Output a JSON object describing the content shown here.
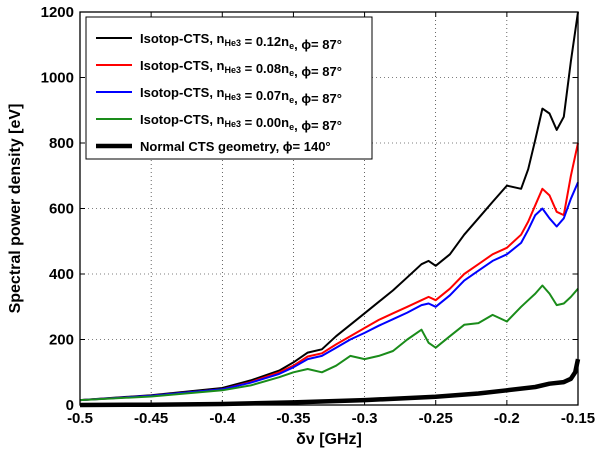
{
  "chart_data": {
    "type": "line",
    "xlabel": "δν [GHz]",
    "ylabel": "Spectral power density [eV]",
    "xlim": [
      -0.5,
      -0.15
    ],
    "ylim": [
      0,
      1200
    ],
    "xticks": [
      "-0.5",
      "-0.45",
      "-0.4",
      "-0.35",
      "-0.3",
      "-0.25",
      "-0.2",
      "-0.15"
    ],
    "xtick_values": [
      -0.5,
      -0.45,
      -0.4,
      -0.35,
      -0.3,
      -0.25,
      -0.2,
      -0.15
    ],
    "yticks": [
      "0",
      "200",
      "400",
      "600",
      "800",
      "1000",
      "1200"
    ],
    "ytick_values": [
      0,
      200,
      400,
      600,
      800,
      1000,
      1200
    ],
    "grid": true,
    "legend_position": "top-left",
    "legend": [
      {
        "prefix": "Isotop-CTS, n",
        "sub1": "He3",
        "mid": " = 0.12n",
        "sub2": "e",
        "suffix": ", ϕ= 87°"
      },
      {
        "prefix": "Isotop-CTS, n",
        "sub1": "He3",
        "mid": " = 0.08n",
        "sub2": "e",
        "suffix": ", ϕ= 87°"
      },
      {
        "prefix": "Isotop-CTS, n",
        "sub1": "He3",
        "mid": " = 0.07n",
        "sub2": "e",
        "suffix": ", ϕ= 87°"
      },
      {
        "prefix": "Isotop-CTS, n",
        "sub1": "He3",
        "mid": " = 0.00n",
        "sub2": "e",
        "suffix": ", ϕ= 87°"
      },
      {
        "prefix": "Normal CTS geometry,",
        "sub1": "",
        "mid": "      ϕ= 140°",
        "sub2": "",
        "suffix": ""
      }
    ],
    "series": [
      {
        "color": "#000000",
        "width": 2,
        "x": [
          -0.5,
          -0.45,
          -0.4,
          -0.38,
          -0.36,
          -0.35,
          -0.34,
          -0.33,
          -0.32,
          -0.31,
          -0.3,
          -0.29,
          -0.28,
          -0.27,
          -0.26,
          -0.255,
          -0.25,
          -0.24,
          -0.23,
          -0.22,
          -0.21,
          -0.2,
          -0.19,
          -0.185,
          -0.18,
          -0.175,
          -0.17,
          -0.165,
          -0.16,
          -0.155,
          -0.15
        ],
        "y": [
          15,
          30,
          52,
          75,
          105,
          130,
          160,
          170,
          210,
          245,
          280,
          315,
          350,
          390,
          430,
          440,
          425,
          460,
          520,
          570,
          620,
          670,
          660,
          720,
          810,
          905,
          890,
          840,
          880,
          1050,
          1200
        ]
      },
      {
        "color": "#ff0000",
        "width": 2,
        "x": [
          -0.5,
          -0.45,
          -0.4,
          -0.38,
          -0.36,
          -0.35,
          -0.34,
          -0.33,
          -0.32,
          -0.31,
          -0.3,
          -0.29,
          -0.28,
          -0.27,
          -0.26,
          -0.255,
          -0.25,
          -0.24,
          -0.23,
          -0.22,
          -0.21,
          -0.2,
          -0.19,
          -0.185,
          -0.18,
          -0.175,
          -0.17,
          -0.165,
          -0.16,
          -0.155,
          -0.15
        ],
        "y": [
          15,
          28,
          48,
          70,
          100,
          120,
          148,
          158,
          185,
          210,
          235,
          260,
          280,
          300,
          320,
          330,
          320,
          355,
          400,
          430,
          460,
          480,
          520,
          560,
          610,
          660,
          640,
          590,
          580,
          700,
          800
        ]
      },
      {
        "color": "#0000ff",
        "width": 2,
        "x": [
          -0.5,
          -0.45,
          -0.4,
          -0.38,
          -0.36,
          -0.35,
          -0.34,
          -0.33,
          -0.32,
          -0.31,
          -0.3,
          -0.29,
          -0.28,
          -0.27,
          -0.26,
          -0.255,
          -0.25,
          -0.24,
          -0.23,
          -0.22,
          -0.21,
          -0.2,
          -0.19,
          -0.185,
          -0.18,
          -0.175,
          -0.17,
          -0.165,
          -0.16,
          -0.155,
          -0.15
        ],
        "y": [
          15,
          28,
          48,
          68,
          95,
          115,
          140,
          150,
          175,
          200,
          220,
          242,
          262,
          282,
          305,
          310,
          300,
          335,
          380,
          410,
          440,
          460,
          495,
          535,
          580,
          600,
          570,
          545,
          570,
          630,
          680
        ]
      },
      {
        "color": "#1a8c1a",
        "width": 2,
        "x": [
          -0.5,
          -0.45,
          -0.4,
          -0.38,
          -0.36,
          -0.35,
          -0.34,
          -0.33,
          -0.32,
          -0.31,
          -0.3,
          -0.29,
          -0.28,
          -0.27,
          -0.26,
          -0.255,
          -0.25,
          -0.24,
          -0.23,
          -0.22,
          -0.21,
          -0.2,
          -0.19,
          -0.185,
          -0.18,
          -0.175,
          -0.17,
          -0.165,
          -0.16,
          -0.155,
          -0.15
        ],
        "y": [
          15,
          26,
          45,
          60,
          85,
          100,
          110,
          100,
          120,
          150,
          140,
          150,
          165,
          200,
          230,
          190,
          175,
          210,
          245,
          250,
          275,
          255,
          300,
          320,
          340,
          365,
          340,
          305,
          310,
          330,
          355
        ]
      },
      {
        "color": "#000000",
        "width": 4.5,
        "x": [
          -0.5,
          -0.45,
          -0.4,
          -0.35,
          -0.3,
          -0.25,
          -0.22,
          -0.2,
          -0.18,
          -0.17,
          -0.16,
          -0.155,
          -0.152,
          -0.15
        ],
        "y": [
          0,
          1,
          3,
          8,
          15,
          25,
          35,
          45,
          55,
          65,
          70,
          80,
          100,
          140
        ]
      }
    ]
  }
}
